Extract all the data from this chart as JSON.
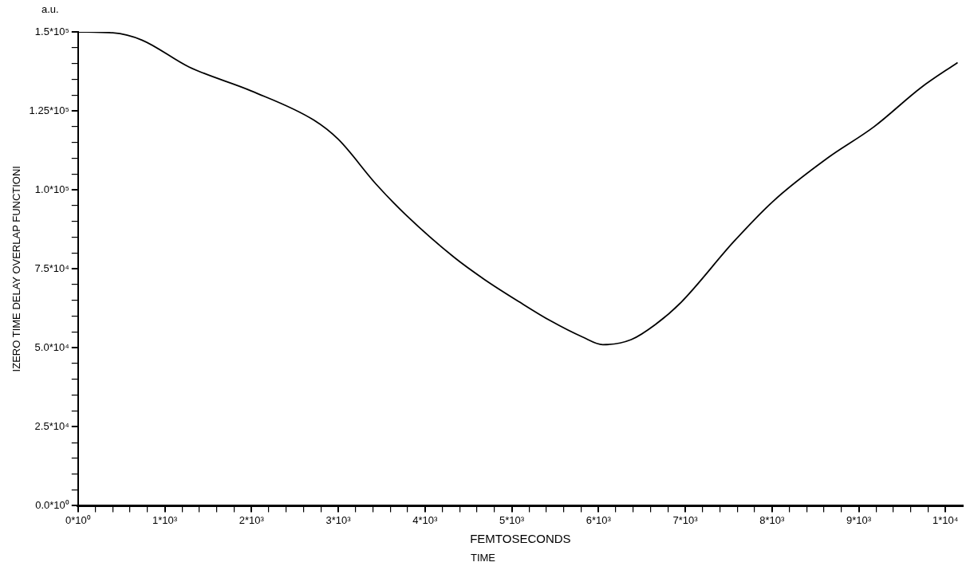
{
  "chart_data": {
    "type": "line",
    "title": "a.u.",
    "xlabel": "FEMTOSECONDS",
    "annotations": [
      "TIME"
    ],
    "ylabel": "IZERO TIME DELAY OVERLAP FUNCTIONI",
    "x": [
      0,
      400,
      738,
      1279,
      1998,
      2717,
      3000,
      3436,
      3790,
      4333,
      4687,
      5089,
      5450,
      5817,
      6050,
      6377,
      6657,
      6956,
      7563,
      8030,
      8637,
      9178,
      9720,
      10140
    ],
    "series": [
      {
        "color": "#000000",
        "values": [
          150000,
          149700,
          147400,
          138900,
          131300,
          122100,
          116000,
          101800,
          91800,
          78700,
          71600,
          64500,
          58500,
          53400,
          51000,
          52600,
          57400,
          64500,
          83700,
          96800,
          110000,
          120000,
          132400,
          140300
        ]
      }
    ],
    "xlim": [
      0,
      10200
    ],
    "xticks": [
      {
        "value": 0,
        "label": "0*10⁰"
      },
      {
        "value": 200,
        "label": null
      },
      {
        "value": 400,
        "label": null
      },
      {
        "value": 600,
        "label": null
      },
      {
        "value": 800,
        "label": null
      },
      {
        "value": 1000,
        "label": "1*10³"
      },
      {
        "value": 1200,
        "label": null
      },
      {
        "value": 1400,
        "label": null
      },
      {
        "value": 1600,
        "label": null
      },
      {
        "value": 1800,
        "label": null
      },
      {
        "value": 2000,
        "label": "2*10³"
      },
      {
        "value": 2200,
        "label": null
      },
      {
        "value": 2400,
        "label": null
      },
      {
        "value": 2600,
        "label": null
      },
      {
        "value": 2800,
        "label": null
      },
      {
        "value": 3000,
        "label": "3*10³"
      },
      {
        "value": 3200,
        "label": null
      },
      {
        "value": 3400,
        "label": null
      },
      {
        "value": 3600,
        "label": null
      },
      {
        "value": 3800,
        "label": null
      },
      {
        "value": 4000,
        "label": "4*10³"
      },
      {
        "value": 4200,
        "label": null
      },
      {
        "value": 4400,
        "label": null
      },
      {
        "value": 4600,
        "label": null
      },
      {
        "value": 4800,
        "label": null
      },
      {
        "value": 5000,
        "label": "5*10³"
      },
      {
        "value": 5200,
        "label": null
      },
      {
        "value": 5400,
        "label": null
      },
      {
        "value": 5600,
        "label": null
      },
      {
        "value": 5800,
        "label": null
      },
      {
        "value": 6000,
        "label": "6*10³"
      },
      {
        "value": 6200,
        "label": null
      },
      {
        "value": 6400,
        "label": null
      },
      {
        "value": 6600,
        "label": null
      },
      {
        "value": 6800,
        "label": null
      },
      {
        "value": 7000,
        "label": "7*10³"
      },
      {
        "value": 7200,
        "label": null
      },
      {
        "value": 7400,
        "label": null
      },
      {
        "value": 7600,
        "label": null
      },
      {
        "value": 7800,
        "label": null
      },
      {
        "value": 8000,
        "label": "8*10³"
      },
      {
        "value": 8200,
        "label": null
      },
      {
        "value": 8400,
        "label": null
      },
      {
        "value": 8600,
        "label": null
      },
      {
        "value": 8800,
        "label": null
      },
      {
        "value": 9000,
        "label": "9*10³"
      },
      {
        "value": 9200,
        "label": null
      },
      {
        "value": 9400,
        "label": null
      },
      {
        "value": 9600,
        "label": null
      },
      {
        "value": 9800,
        "label": null
      },
      {
        "value": 10000,
        "label": "1*10⁴"
      }
    ],
    "ylim": [
      0,
      150000
    ],
    "yticks": [
      {
        "value": 0,
        "label": "0.0*10⁰"
      },
      {
        "value": 5000,
        "label": null
      },
      {
        "value": 10000,
        "label": null
      },
      {
        "value": 15000,
        "label": null
      },
      {
        "value": 20000,
        "label": null
      },
      {
        "value": 25000,
        "label": "2.5*10⁴"
      },
      {
        "value": 30000,
        "label": null
      },
      {
        "value": 35000,
        "label": null
      },
      {
        "value": 40000,
        "label": null
      },
      {
        "value": 45000,
        "label": null
      },
      {
        "value": 50000,
        "label": "5.0*10⁴"
      },
      {
        "value": 55000,
        "label": null
      },
      {
        "value": 60000,
        "label": null
      },
      {
        "value": 65000,
        "label": null
      },
      {
        "value": 70000,
        "label": null
      },
      {
        "value": 75000,
        "label": "7.5*10⁴"
      },
      {
        "value": 80000,
        "label": null
      },
      {
        "value": 85000,
        "label": null
      },
      {
        "value": 90000,
        "label": null
      },
      {
        "value": 95000,
        "label": null
      },
      {
        "value": 100000,
        "label": "1.0*10⁵"
      },
      {
        "value": 105000,
        "label": null
      },
      {
        "value": 110000,
        "label": null
      },
      {
        "value": 115000,
        "label": null
      },
      {
        "value": 120000,
        "label": null
      },
      {
        "value": 125000,
        "label": "1.25*10⁵"
      },
      {
        "value": 130000,
        "label": null
      },
      {
        "value": 135000,
        "label": null
      },
      {
        "value": 140000,
        "label": null
      },
      {
        "value": 145000,
        "label": null
      },
      {
        "value": 150000,
        "label": "1.5*10⁵"
      }
    ],
    "grid": false,
    "legend": false,
    "marker": "none",
    "line_style": "solid"
  }
}
